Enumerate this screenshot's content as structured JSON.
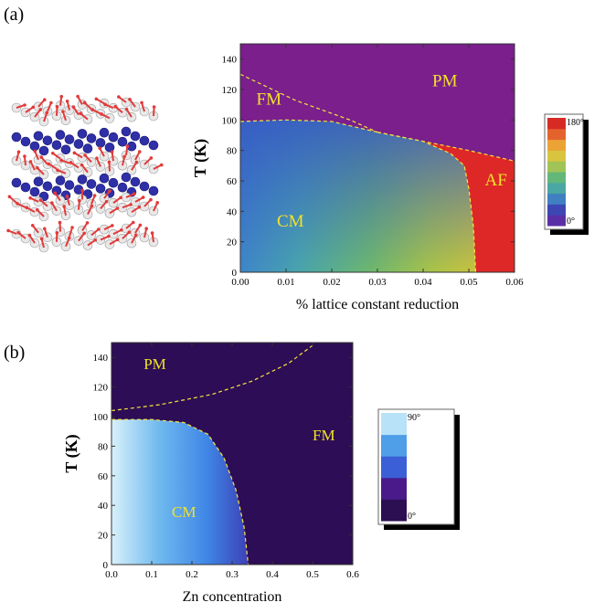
{
  "panels": {
    "a_label": "(a)",
    "b_label": "(b)"
  },
  "chart_data": [
    {
      "type": "heatmap",
      "title": "",
      "xlabel": "% lattice constant reduction",
      "ylabel": "T (K)",
      "xlim": [
        0,
        0.06
      ],
      "ylim": [
        0,
        150
      ],
      "x_ticks": [
        "0.00",
        "0.01",
        "0.02",
        "0.03",
        "0.04",
        "0.05",
        "0.06"
      ],
      "y_ticks": [
        "0",
        "20",
        "40",
        "60",
        "80",
        "100",
        "120",
        "140"
      ],
      "regions": [
        {
          "label": "PM",
          "x": 0.042,
          "y": 122
        },
        {
          "label": "FM",
          "x": 0.0035,
          "y": 110
        },
        {
          "label": "AF",
          "x": 0.0535,
          "y": 57
        },
        {
          "label": "CM",
          "x": 0.008,
          "y": 30
        }
      ],
      "boundaries": [
        {
          "name": "PM-FM",
          "points": [
            [
              0,
              130
            ],
            [
              0.012,
              113
            ],
            [
              0.024,
              100
            ],
            [
              0.03,
              92
            ]
          ]
        },
        {
          "name": "FM-CM",
          "points": [
            [
              0,
              99
            ],
            [
              0.01,
              100
            ],
            [
              0.02,
              99
            ],
            [
              0.03,
              92
            ]
          ]
        },
        {
          "name": "PM-AF",
          "points": [
            [
              0.03,
              92
            ],
            [
              0.04,
              86
            ],
            [
              0.05,
              80
            ],
            [
              0.06,
              73
            ]
          ]
        },
        {
          "name": "CM-AF",
          "points": [
            [
              0.03,
              92
            ],
            [
              0.04,
              86
            ],
            [
              0.046,
              78
            ],
            [
              0.049,
              70
            ],
            [
              0.05,
              55
            ],
            [
              0.051,
              30
            ],
            [
              0.0515,
              0
            ]
          ]
        }
      ],
      "colorbar": {
        "max_label": "180°",
        "min_label": "0°",
        "colors": [
          "#5a2fa6",
          "#3d46b3",
          "#3f7fc2",
          "#4aa7a3",
          "#62b779",
          "#a0c457",
          "#d9c43f",
          "#eaa334",
          "#e4632d",
          "#d82a25"
        ]
      },
      "colors": {
        "pm": "#7a1f8c",
        "af": "#de2727"
      }
    },
    {
      "type": "heatmap",
      "title": "",
      "xlabel": "Zn concentration",
      "ylabel": "T (K)",
      "xlim": [
        0,
        0.6
      ],
      "ylim": [
        0,
        150
      ],
      "x_ticks": [
        "0.0",
        "0.1",
        "0.2",
        "0.3",
        "0.4",
        "0.5",
        "0.6"
      ],
      "y_ticks": [
        "0",
        "20",
        "40",
        "60",
        "80",
        "100",
        "120",
        "140"
      ],
      "regions": [
        {
          "label": "PM",
          "x": 0.08,
          "y": 132
        },
        {
          "label": "FM",
          "x": 0.5,
          "y": 84
        },
        {
          "label": "CM",
          "x": 0.15,
          "y": 32
        }
      ],
      "boundaries": [
        {
          "name": "PM-FM",
          "points": [
            [
              0,
              104
            ],
            [
              0.12,
              108
            ],
            [
              0.25,
              115
            ],
            [
              0.35,
              124
            ],
            [
              0.44,
              136
            ],
            [
              0.5,
              148
            ]
          ]
        },
        {
          "name": "CM-FM",
          "points": [
            [
              0,
              98
            ],
            [
              0.1,
              98
            ],
            [
              0.18,
              96
            ],
            [
              0.24,
              88
            ],
            [
              0.28,
              72
            ],
            [
              0.31,
              50
            ],
            [
              0.33,
              25
            ],
            [
              0.34,
              0
            ]
          ]
        }
      ],
      "colorbar": {
        "max_label": "90°",
        "min_label": "0°",
        "colors": [
          "#2b0f52",
          "#4a1a8a",
          "#3b5fd6",
          "#4f9ee8",
          "#b8e2f8"
        ]
      },
      "colors": {
        "background": "#2d0d55"
      }
    }
  ]
}
